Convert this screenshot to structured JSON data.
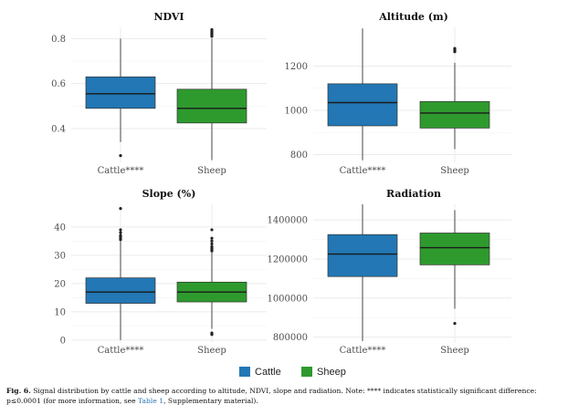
{
  "colors": {
    "cattle": "#2277b4",
    "sheep": "#2e9a2e",
    "grid": "#ebebeb",
    "whisker": "#333333",
    "link": "#2b75b8"
  },
  "legend": {
    "items": [
      {
        "label": "Cattle",
        "color": "#2277b4"
      },
      {
        "label": "Sheep",
        "color": "#2e9a2e"
      }
    ]
  },
  "caption": {
    "label": "Fig. 6.",
    "text": "Signal distribution by cattle and sheep according to altitude, NDVI, slope and radiation. Note: **** indicates statistically significant difference: p≤0.0001 (for more information, see",
    "link_text": "Table 1",
    "tail": ", Supplementary material)."
  },
  "chart_data": [
    {
      "type": "box",
      "title": "NDVI",
      "categories": [
        "Cattle****",
        "Sheep"
      ],
      "ylim": [
        0.25,
        0.85
      ],
      "yticks": [
        0.4,
        0.6,
        0.8
      ],
      "tick_labels": [
        "0.4",
        "0.6",
        "0.8"
      ],
      "boxes": [
        {
          "group": "Cattle",
          "min": 0.34,
          "q1": 0.49,
          "median": 0.555,
          "q3": 0.63,
          "max": 0.8,
          "outliers": [
            0.28
          ]
        },
        {
          "group": "Sheep",
          "min": 0.26,
          "q1": 0.425,
          "median": 0.49,
          "q3": 0.575,
          "max": 0.8,
          "outliers": [
            0.81,
            0.815,
            0.82,
            0.825,
            0.83,
            0.835,
            0.84
          ]
        }
      ]
    },
    {
      "type": "box",
      "title": "Altitude (m)",
      "categories": [
        "Cattle****",
        "Sheep"
      ],
      "ylim": [
        765,
        1375
      ],
      "yticks": [
        800,
        1000,
        1200
      ],
      "tick_labels": [
        "800",
        "1000",
        "1200"
      ],
      "boxes": [
        {
          "group": "Cattle",
          "min": 775,
          "q1": 930,
          "median": 1035,
          "q3": 1120,
          "max": 1370,
          "outliers": []
        },
        {
          "group": "Sheep",
          "min": 825,
          "q1": 920,
          "median": 988,
          "q3": 1040,
          "max": 1215,
          "outliers": [
            1265,
            1270,
            1275,
            1280
          ]
        }
      ]
    },
    {
      "type": "box",
      "title": "Slope (%)",
      "categories": [
        "Cattle****",
        "Sheep"
      ],
      "ylim": [
        -1,
        48
      ],
      "yticks": [
        0,
        10,
        20,
        30,
        40
      ],
      "tick_labels": [
        "0",
        "10",
        "20",
        "30",
        "40"
      ],
      "boxes": [
        {
          "group": "Cattle",
          "min": 0,
          "q1": 13,
          "median": 17,
          "q3": 22,
          "max": 35,
          "outliers": [
            35.5,
            36,
            36.5,
            37,
            38,
            39,
            46.5
          ]
        },
        {
          "group": "Sheep",
          "min": 4,
          "q1": 13.5,
          "median": 17,
          "q3": 20.5,
          "max": 31,
          "outliers": [
            2,
            2.5,
            31.5,
            32,
            32.5,
            33,
            34,
            35,
            36,
            39
          ]
        }
      ]
    },
    {
      "type": "box",
      "title": "Radiation",
      "categories": [
        "Cattle****",
        "Sheep"
      ],
      "ylim": [
        770000,
        1480000
      ],
      "yticks": [
        800000,
        1000000,
        1200000,
        1400000
      ],
      "tick_labels": [
        "800000",
        "1000000",
        "1200000",
        "1400000"
      ],
      "boxes": [
        {
          "group": "Cattle",
          "min": 780000,
          "q1": 1110000,
          "median": 1225000,
          "q3": 1325000,
          "max": 1480000,
          "outliers": []
        },
        {
          "group": "Sheep",
          "min": 945000,
          "q1": 1170000,
          "median": 1258000,
          "q3": 1333000,
          "max": 1450000,
          "outliers": [
            870000
          ]
        }
      ]
    }
  ]
}
